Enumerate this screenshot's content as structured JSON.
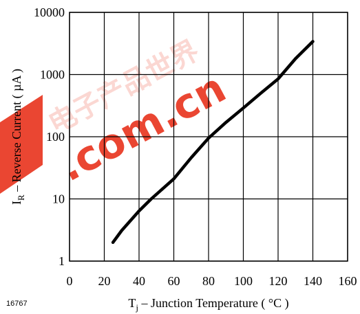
{
  "figure_id": "16767",
  "watermark": {
    "text": ".com.cn",
    "chinese": "电子产品世界",
    "color": "#e8321c"
  },
  "colors": {
    "curve": "#000000",
    "grid": "#000000",
    "background": "#ffffff"
  },
  "chart_data": {
    "type": "line",
    "title": "",
    "xlabel": {
      "main": "T",
      "sub": "j",
      "rest": " – Junction Temperature ( °C )"
    },
    "ylabel": {
      "main": "I",
      "sub": "R",
      "rest": " – Reverse Current ( µA )"
    },
    "xlim": [
      0,
      160
    ],
    "ylim": [
      1,
      10000
    ],
    "y_scale": "log",
    "grid": true,
    "x_ticks": [
      {
        "value": 0,
        "label": "0"
      },
      {
        "value": 20,
        "label": "20"
      },
      {
        "value": 40,
        "label": "40"
      },
      {
        "value": 60,
        "label": "60"
      },
      {
        "value": 80,
        "label": "80"
      },
      {
        "value": 100,
        "label": "100"
      },
      {
        "value": 120,
        "label": "120"
      },
      {
        "value": 140,
        "label": "140"
      },
      {
        "value": 160,
        "label": "160"
      }
    ],
    "y_ticks": [
      {
        "value": 1,
        "label": "1"
      },
      {
        "value": 10,
        "label": "10"
      },
      {
        "value": 100,
        "label": "100"
      },
      {
        "value": 1000,
        "label": "1000"
      },
      {
        "value": 10000,
        "label": "10000"
      }
    ],
    "series": [
      {
        "x": [
          25,
          30,
          40,
          47,
          60,
          70,
          80,
          90,
          100,
          110,
          120,
          130,
          140
        ],
        "y": [
          2,
          3.1,
          6.4,
          10,
          21,
          46,
          95,
          170,
          290,
          500,
          850,
          1800,
          3400
        ]
      }
    ]
  }
}
